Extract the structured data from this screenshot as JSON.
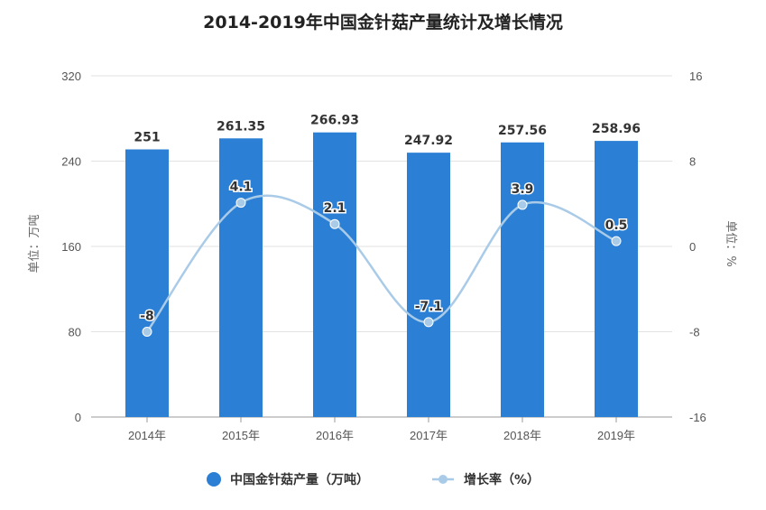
{
  "chart_data": {
    "type": "bar+line",
    "title": "2014-2019年中国金针菇产量统计及增长情况",
    "categories": [
      "2014年",
      "2015年",
      "2016年",
      "2017年",
      "2018年",
      "2019年"
    ],
    "series": [
      {
        "name": "中国金针菇产量（万吨）",
        "type": "bar",
        "axis": "left",
        "color": "#2b7fd4",
        "values": [
          251,
          261.35,
          266.93,
          247.92,
          257.56,
          258.96
        ],
        "labels": [
          "251",
          "261.35",
          "266.93",
          "247.92",
          "257.56",
          "258.96"
        ]
      },
      {
        "name": "增长率（%）",
        "type": "line",
        "axis": "right",
        "smooth": true,
        "color": "#a9cbe8",
        "values": [
          -8,
          4.1,
          2.1,
          -7.1,
          3.9,
          0.5
        ],
        "labels": [
          "-8",
          "4.1",
          "2.1",
          "-7.1",
          "3.9",
          "0.5"
        ]
      }
    ],
    "left_axis": {
      "label": "单位：万吨",
      "range": [
        0,
        320
      ],
      "ticks": [
        "0",
        "80",
        "160",
        "240",
        "320"
      ]
    },
    "right_axis": {
      "label": "单位：%",
      "range": [
        -16,
        16
      ],
      "ticks": [
        "-16",
        "-8",
        "0",
        "8",
        "16"
      ]
    },
    "grid": true,
    "legend": "bottom"
  }
}
